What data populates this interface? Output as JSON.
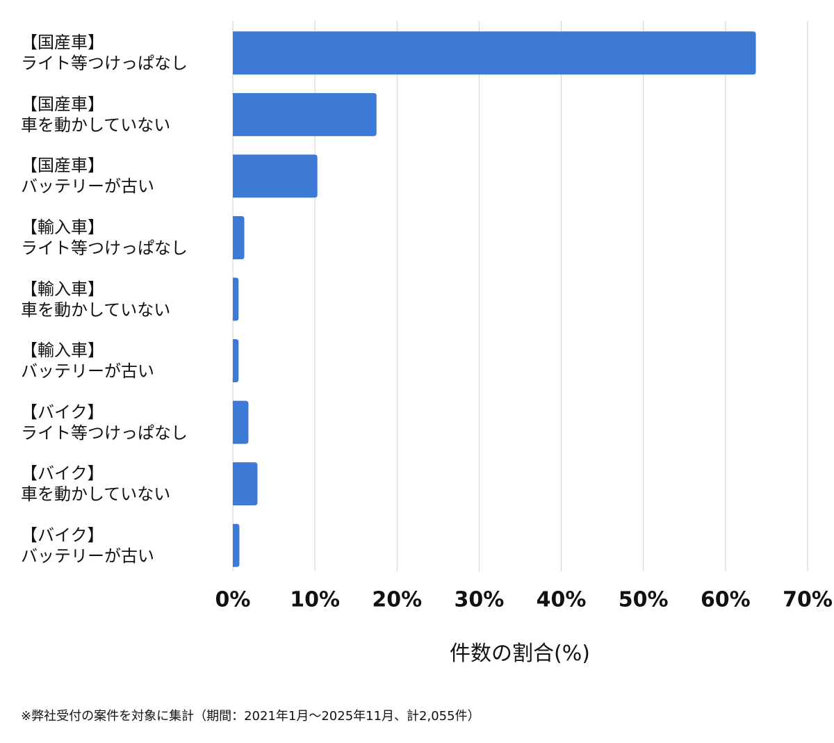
{
  "chart_data": {
    "type": "bar",
    "orientation": "horizontal",
    "categories": [
      "【国産車】\nライト等つけっぱなし",
      "【国産車】\n車を動かしていない",
      "【国産車】\nバッテリーが古い",
      "【輸入車】\nライト等つけっぱなし",
      "【輸入車】\n車を動かしていない",
      "【輸入車】\nバッテリーが古い",
      "【バイク】\nライト等つけっぱなし",
      "【バイク】\n車を動かしていない",
      "【バイク】\nバッテリーが古い"
    ],
    "values": [
      63.7,
      17.5,
      10.3,
      1.4,
      0.7,
      0.7,
      1.9,
      3.0,
      0.8
    ],
    "color": "#3d7ad6",
    "xlim": [
      0,
      70
    ],
    "xticks": [
      {
        "value": 0,
        "label": "0%"
      },
      {
        "value": 10,
        "label": "10%"
      },
      {
        "value": 20,
        "label": "20%"
      },
      {
        "value": 30,
        "label": "30%"
      },
      {
        "value": 40,
        "label": "40%"
      },
      {
        "value": 50,
        "label": "50%"
      },
      {
        "value": 60,
        "label": "60%"
      },
      {
        "value": 70,
        "label": "70%"
      }
    ],
    "grid": true,
    "x_label": "件数の割合(%)",
    "footnote": "※弊社受付の案件を対象に集計（期間：2021年1月～2025年11月、計2,055件）"
  }
}
